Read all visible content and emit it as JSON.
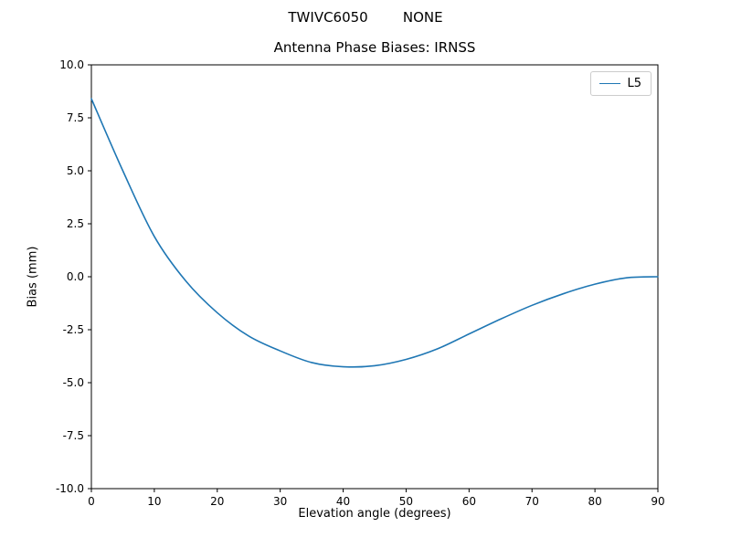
{
  "chart_data": {
    "type": "line",
    "suptitle": "TWIVC6050        NONE",
    "title": "Antenna Phase Biases: IRNSS",
    "xlabel": "Elevation angle (degrees)",
    "ylabel": "Bias (mm)",
    "xlim": [
      0,
      90
    ],
    "ylim": [
      -10,
      10
    ],
    "grid": false,
    "legend_position": "upper right",
    "xticks": [
      0,
      10,
      20,
      30,
      40,
      50,
      60,
      70,
      80,
      90
    ],
    "xtick_labels": [
      "0",
      "10",
      "20",
      "30",
      "40",
      "50",
      "60",
      "70",
      "80",
      "90"
    ],
    "yticks": [
      -10,
      -7.5,
      -5,
      -2.5,
      0,
      2.5,
      5,
      7.5,
      10
    ],
    "ytick_labels": [
      "-10.0",
      "-7.5",
      "-5.0",
      "-2.5",
      "0.0",
      "2.5",
      "5.0",
      "7.5",
      "10.0"
    ],
    "x": [
      0,
      5,
      10,
      15,
      20,
      25,
      30,
      35,
      40,
      45,
      50,
      55,
      60,
      65,
      70,
      75,
      80,
      85,
      90
    ],
    "series": [
      {
        "name": "L5",
        "color": "#1f77b4",
        "values": [
          8.4,
          5.0,
          1.9,
          -0.2,
          -1.7,
          -2.8,
          -3.5,
          -4.05,
          -4.25,
          -4.2,
          -3.9,
          -3.4,
          -2.7,
          -2.0,
          -1.35,
          -0.8,
          -0.35,
          -0.05,
          0.0
        ]
      }
    ]
  }
}
